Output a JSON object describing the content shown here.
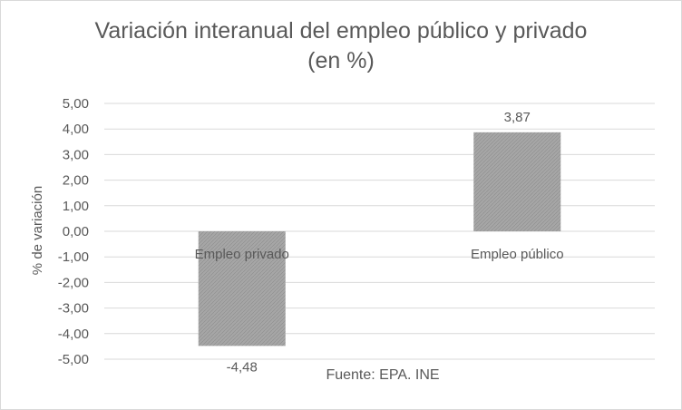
{
  "chart_data": {
    "type": "bar",
    "title_lines": [
      "Variación interanual del empleo público y privado",
      "(en %)"
    ],
    "ylabel": "% de variación",
    "xlabel": "",
    "categories": [
      "Empleo privado",
      "Empleo público"
    ],
    "values": [
      -4.48,
      3.87
    ],
    "value_labels": [
      "-4,48",
      "3,87"
    ],
    "ylim": [
      -5,
      5
    ],
    "y_ticks": [
      5,
      4,
      3,
      2,
      1,
      0,
      -1,
      -2,
      -3,
      -4,
      -5
    ],
    "y_tick_labels": [
      "5,00",
      "4,00",
      "3,00",
      "2,00",
      "1,00",
      "0,00",
      "-1,00",
      "-2,00",
      "-3,00",
      "-4,00",
      "-5,00"
    ],
    "grid": true,
    "legend": "none",
    "source_note": "Fuente: EPA. INE",
    "colors": {
      "bar": "#a6a6a6",
      "text": "#595959",
      "grid": "#d9d9d9"
    }
  }
}
